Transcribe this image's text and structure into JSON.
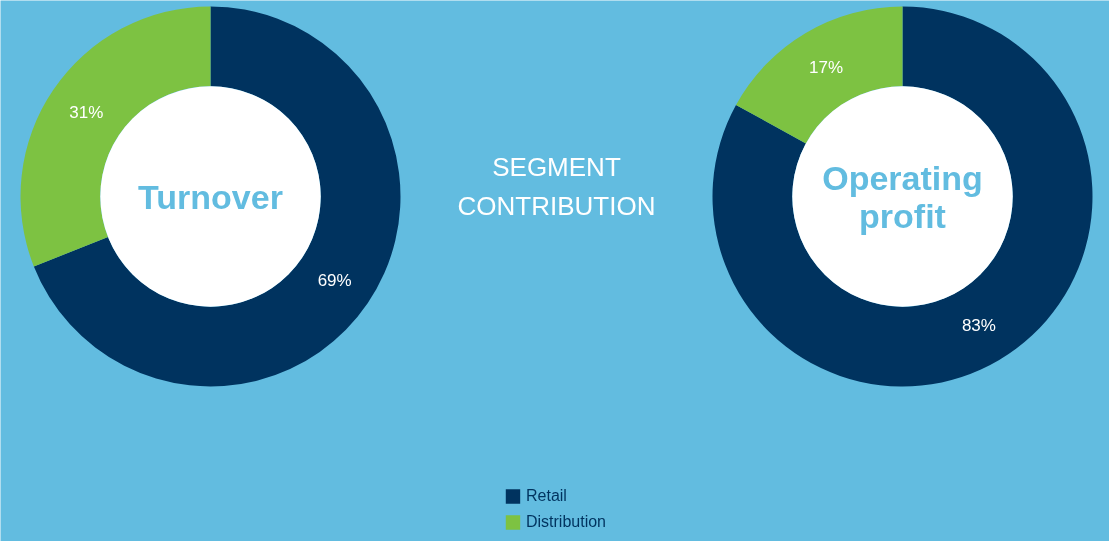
{
  "chart_data": [
    {
      "type": "donut",
      "title": "Turnover",
      "categories": [
        "Retail",
        "Distribution"
      ],
      "values": [
        69,
        31
      ],
      "colors": [
        "#00335f",
        "#7dc242"
      ],
      "value_labels": [
        "69%",
        "31%"
      ],
      "legend": "bottom"
    },
    {
      "type": "other",
      "title": "SEGMENT CONTRIBUTION"
    },
    {
      "type": "donut",
      "title": "Operating profit",
      "categories": [
        null,
        null
      ],
      "values": [
        83,
        17
      ],
      "colors": [
        "#00335f",
        "#7dc242"
      ],
      "value_labels": [
        "83%",
        "17%"
      ]
    }
  ]
}
